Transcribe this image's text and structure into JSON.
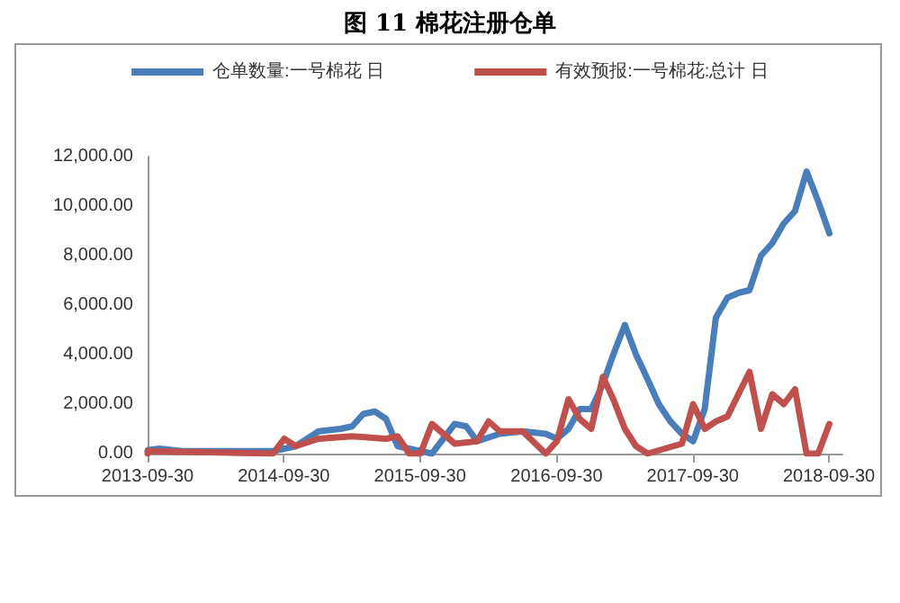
{
  "chart_data": {
    "type": "line",
    "title": "图 11  棉花注册仓单",
    "series": [
      {
        "name": "仓单数量:一号棉花 日",
        "color": "#4a7ebb",
        "x": [
          "2013-09-30",
          "2013-10",
          "2013-11",
          "2014-01",
          "2014-06",
          "2014-09",
          "2014-11",
          "2015-01",
          "2015-03",
          "2015-04",
          "2015-05",
          "2015-06",
          "2015-07",
          "2015-08",
          "2015-09",
          "2015-11",
          "2016-01",
          "2016-02",
          "2016-03",
          "2016-05",
          "2016-07",
          "2016-09",
          "2016-10",
          "2016-11",
          "2016-12",
          "2017-01",
          "2017-02",
          "2017-03",
          "2017-04",
          "2017-05",
          "2017-06",
          "2017-07",
          "2017-08",
          "2017-09",
          "2017-10",
          "2017-11",
          "2017-12",
          "2018-01",
          "2018-02",
          "2018-03",
          "2018-04",
          "2018-05",
          "2018-06",
          "2018-07",
          "2018-08",
          "2018-09",
          "2018-10"
        ],
        "values": [
          100,
          150,
          200,
          100,
          100,
          100,
          300,
          900,
          1000,
          1100,
          1600,
          1700,
          1400,
          300,
          200,
          0,
          1200,
          1100,
          500,
          800,
          900,
          800,
          600,
          1000,
          1800,
          1800,
          2800,
          4000,
          5200,
          4000,
          3000,
          2000,
          1300,
          800,
          500,
          1800,
          5500,
          6300,
          6500,
          6600,
          8000,
          8500,
          9300,
          9800,
          11400,
          10200,
          8900
        ]
      },
      {
        "name": "有效预报:一号棉花:总计 日",
        "color": "#c0504d",
        "x": [
          "2013-09-30",
          "2013-10",
          "2014-09",
          "2014-10",
          "2014-11",
          "2015-01",
          "2015-04",
          "2015-07",
          "2015-08",
          "2015-09",
          "2015-10",
          "2015-11",
          "2016-01",
          "2016-03",
          "2016-04",
          "2016-05",
          "2016-07",
          "2016-09",
          "2016-10",
          "2016-11",
          "2016-12",
          "2017-01",
          "2017-02",
          "2017-03",
          "2017-04",
          "2017-05",
          "2017-06",
          "2017-09",
          "2017-10",
          "2017-11",
          "2017-12",
          "2018-01",
          "2018-03",
          "2018-04",
          "2018-05",
          "2018-06",
          "2018-07",
          "2018-08",
          "2018-09",
          "2018-10"
        ],
        "values": [
          0,
          100,
          0,
          600,
          300,
          600,
          700,
          600,
          700,
          0,
          0,
          1200,
          400,
          500,
          1300,
          900,
          900,
          0,
          500,
          2200,
          1400,
          1000,
          3100,
          2200,
          1000,
          300,
          0,
          400,
          2000,
          1000,
          1300,
          1500,
          3300,
          1000,
          2400,
          2000,
          2600,
          0,
          0,
          1200
        ]
      }
    ],
    "xlim": [
      "2013-09-30",
      "2018-11-05"
    ],
    "xticks": [
      "2013-09-30",
      "2014-09-30",
      "2015-09-30",
      "2016-09-30",
      "2017-09-30",
      "2018-09-30"
    ],
    "ylim": [
      0,
      12000
    ],
    "yticks": [
      {
        "value": 0,
        "label": "0.00"
      },
      {
        "value": 2000,
        "label": "2,000.00"
      },
      {
        "value": 4000,
        "label": "4,000.00"
      },
      {
        "value": 6000,
        "label": "6,000.00"
      },
      {
        "value": 8000,
        "label": "8,000.00"
      },
      {
        "value": 10000,
        "label": "10,000.00"
      },
      {
        "value": 12000,
        "label": "12,000.00"
      }
    ],
    "grid": false,
    "legend": "top",
    "marker": "none",
    "line_style": "solid"
  }
}
